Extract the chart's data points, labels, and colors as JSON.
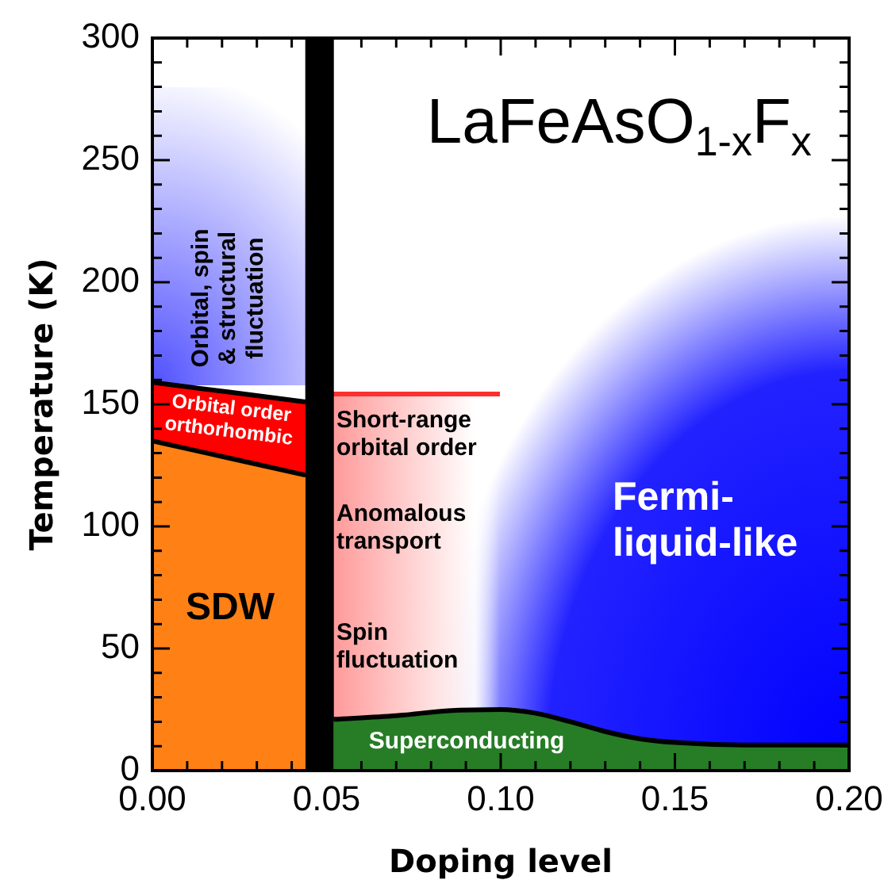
{
  "chart_data": {
    "type": "area",
    "title": "LaFeAsO$_{1-x}$F$_{x}$",
    "xlabel": "Doping level",
    "ylabel": "Temperature (K)",
    "stacked": true,
    "series": [
      {
        "x": [
          0,
          0.044
        ],
        "values": [
          135,
          121
        ],
        "color": "#ff8015"
      },
      {
        "x": [
          0,
          0.044
        ],
        "values": [
          24,
          30
        ],
        "color": "#ff0000"
      },
      {
        "x": [
          0.052,
          0.07,
          0.085,
          0.1,
          0.11,
          0.12,
          0.13,
          0.14,
          0.15,
          0.17,
          0.2
        ],
        "values": [
          21,
          22.5,
          24.5,
          25,
          23.5,
          20,
          16,
          13,
          11.5,
          10.5,
          10.5
        ],
        "color": "#267d26"
      }
    ],
    "ref_lines": [
      {
        "axis": "x",
        "value": 0.048,
        "color": "#000000"
      }
    ],
    "annotations": [
      "Orbital, spin\n& structural\nfluctuation",
      "Orbital order\northorhombic",
      "SDW",
      "Short-range\norbital order",
      "Anomalous\ntransport",
      "Spin\nfluctuation",
      "Fermi-\nliquid-like",
      "Superconducting"
    ],
    "xlim": [
      0,
      0.2
    ],
    "xticks": [
      {
        "value": 0,
        "label": "0.00"
      },
      {
        "value": 0.01,
        "label": null
      },
      {
        "value": 0.02,
        "label": null
      },
      {
        "value": 0.03,
        "label": null
      },
      {
        "value": 0.04,
        "label": null
      },
      {
        "value": 0.05,
        "label": "0.05"
      },
      {
        "value": 0.06,
        "label": null
      },
      {
        "value": 0.07,
        "label": null
      },
      {
        "value": 0.08,
        "label": null
      },
      {
        "value": 0.09,
        "label": null
      },
      {
        "value": 0.1,
        "label": "0.10"
      },
      {
        "value": 0.11,
        "label": null
      },
      {
        "value": 0.12,
        "label": null
      },
      {
        "value": 0.13,
        "label": null
      },
      {
        "value": 0.14,
        "label": null
      },
      {
        "value": 0.15,
        "label": "0.15"
      },
      {
        "value": 0.16,
        "label": null
      },
      {
        "value": 0.17,
        "label": null
      },
      {
        "value": 0.18,
        "label": null
      },
      {
        "value": 0.19,
        "label": null
      },
      {
        "value": 0.2,
        "label": "0.20"
      }
    ],
    "ylim": [
      0,
      300
    ],
    "yticks": [
      0,
      {
        "value": 10,
        "label": null
      },
      {
        "value": 20,
        "label": null
      },
      {
        "value": 30,
        "label": null
      },
      {
        "value": 40,
        "label": null
      },
      50,
      {
        "value": 60,
        "label": null
      },
      {
        "value": 70,
        "label": null
      },
      {
        "value": 80,
        "label": null
      },
      {
        "value": 90,
        "label": null
      },
      100,
      {
        "value": 110,
        "label": null
      },
      {
        "value": 120,
        "label": null
      },
      {
        "value": 130,
        "label": null
      },
      {
        "value": 140,
        "label": null
      },
      150,
      {
        "value": 160,
        "label": null
      },
      {
        "value": 170,
        "label": null
      },
      {
        "value": 180,
        "label": null
      },
      {
        "value": 190,
        "label": null
      },
      200,
      {
        "value": 210,
        "label": null
      },
      {
        "value": 220,
        "label": null
      },
      {
        "value": 230,
        "label": null
      },
      {
        "value": 240,
        "label": null
      },
      250,
      {
        "value": 260,
        "label": null
      },
      {
        "value": 270,
        "label": null
      },
      {
        "value": 280,
        "label": null
      },
      {
        "value": 290,
        "label": null
      },
      300
    ]
  }
}
